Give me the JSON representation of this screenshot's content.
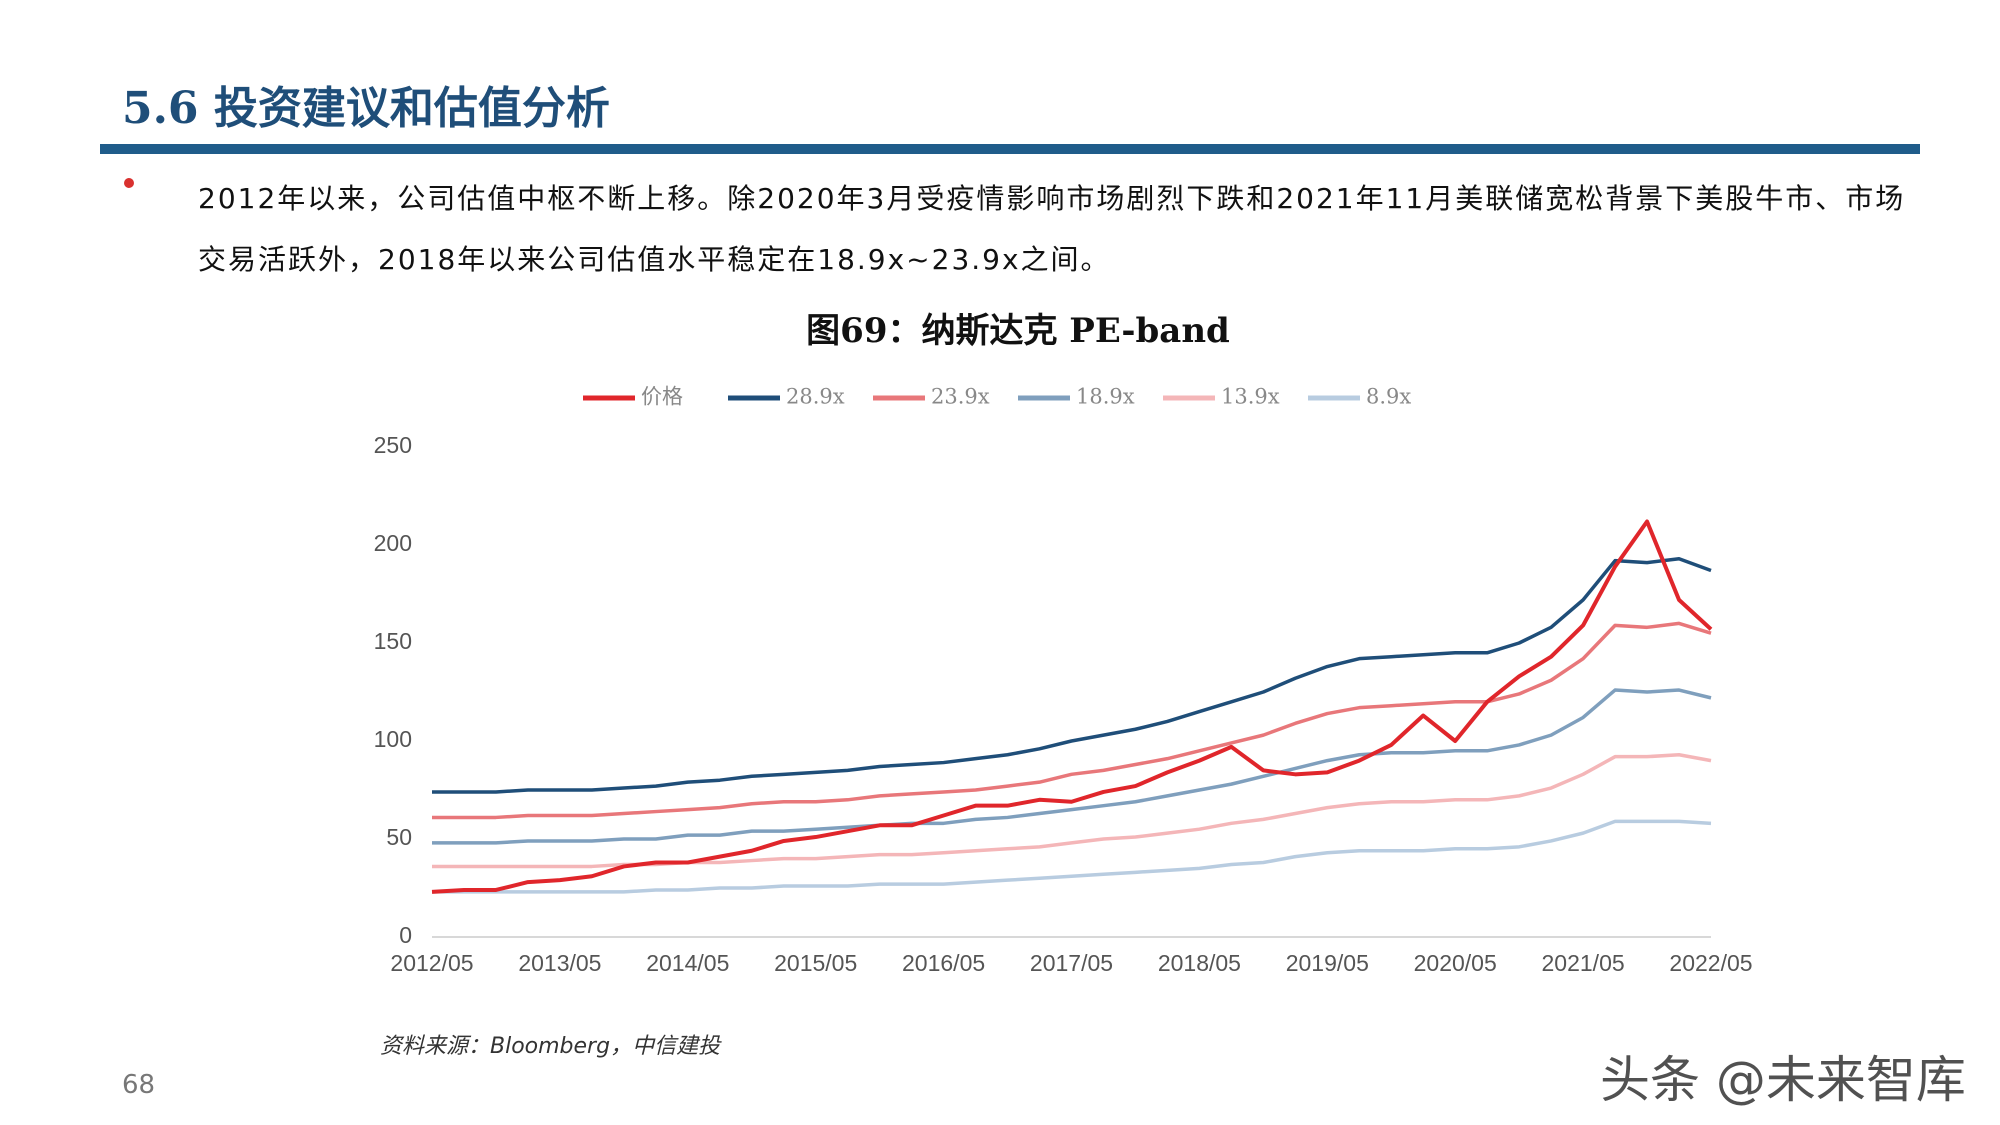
{
  "header": {
    "title": "5.6 投资建议和估值分析"
  },
  "bullet": "2012年以来，公司估值中枢不断上移。除2020年3月受疫情影响市场剧烈下跌和2021年11月美联储宽松背景下美股牛市、市场交易活跃外，2018年以来公司估值水平稳定在18.9x~23.9x之间。",
  "chart_data": {
    "type": "line",
    "title": "图69：纳斯达克 PE-band",
    "x": [
      "2012/05",
      "2012/08",
      "2012/11",
      "2013/02",
      "2013/05",
      "2013/08",
      "2013/11",
      "2014/02",
      "2014/05",
      "2014/08",
      "2014/11",
      "2015/02",
      "2015/05",
      "2015/08",
      "2015/11",
      "2016/02",
      "2016/05",
      "2016/08",
      "2016/11",
      "2017/02",
      "2017/05",
      "2017/08",
      "2017/11",
      "2018/02",
      "2018/05",
      "2018/08",
      "2018/11",
      "2019/02",
      "2019/05",
      "2019/08",
      "2019/11",
      "2020/02",
      "2020/05",
      "2020/08",
      "2020/11",
      "2021/02",
      "2021/05",
      "2021/08",
      "2021/11",
      "2022/02",
      "2022/05"
    ],
    "series": [
      {
        "name": "价格",
        "color": "#e0262b",
        "values": [
          23,
          24,
          24,
          28,
          29,
          31,
          36,
          38,
          38,
          41,
          44,
          49,
          51,
          54,
          57,
          57,
          62,
          67,
          67,
          70,
          69,
          74,
          77,
          84,
          90,
          97,
          85,
          83,
          84,
          90,
          98,
          113,
          100,
          120,
          133,
          143,
          159,
          189,
          212,
          172,
          157
        ]
      },
      {
        "name": "28.9x",
        "color": "#1f4e79",
        "values": [
          74,
          74,
          74,
          75,
          75,
          75,
          76,
          77,
          79,
          80,
          82,
          83,
          84,
          85,
          87,
          88,
          89,
          91,
          93,
          96,
          100,
          103,
          106,
          110,
          115,
          120,
          125,
          132,
          138,
          142,
          143,
          144,
          145,
          145,
          150,
          158,
          172,
          192,
          191,
          193,
          187
        ]
      },
      {
        "name": "23.9x",
        "color": "#e8777a",
        "values": [
          61,
          61,
          61,
          62,
          62,
          62,
          63,
          64,
          65,
          66,
          68,
          69,
          69,
          70,
          72,
          73,
          74,
          75,
          77,
          79,
          83,
          85,
          88,
          91,
          95,
          99,
          103,
          109,
          114,
          117,
          118,
          119,
          120,
          120,
          124,
          131,
          142,
          159,
          158,
          160,
          155
        ]
      },
      {
        "name": "18.9x",
        "color": "#7f9fbd",
        "values": [
          48,
          48,
          48,
          49,
          49,
          49,
          50,
          50,
          52,
          52,
          54,
          54,
          55,
          56,
          57,
          58,
          58,
          60,
          61,
          63,
          65,
          67,
          69,
          72,
          75,
          78,
          82,
          86,
          90,
          93,
          94,
          94,
          95,
          95,
          98,
          103,
          112,
          126,
          125,
          126,
          122
        ]
      },
      {
        "name": "13.9x",
        "color": "#f4b6b8",
        "values": [
          36,
          36,
          36,
          36,
          36,
          36,
          37,
          37,
          38,
          38,
          39,
          40,
          40,
          41,
          42,
          42,
          43,
          44,
          45,
          46,
          48,
          50,
          51,
          53,
          55,
          58,
          60,
          63,
          66,
          68,
          69,
          69,
          70,
          70,
          72,
          76,
          83,
          92,
          92,
          93,
          90
        ]
      },
      {
        "name": "8.9x",
        "color": "#b8cce0",
        "values": [
          23,
          23,
          23,
          23,
          23,
          23,
          23,
          24,
          24,
          25,
          25,
          26,
          26,
          26,
          27,
          27,
          27,
          28,
          29,
          30,
          31,
          32,
          33,
          34,
          35,
          37,
          38,
          41,
          43,
          44,
          44,
          44,
          45,
          45,
          46,
          49,
          53,
          59,
          59,
          59,
          58
        ]
      }
    ],
    "ylim": [
      0,
      250
    ],
    "yticks": [
      0,
      50,
      100,
      150,
      200,
      250
    ],
    "grid": false,
    "legend": "top"
  },
  "source": "资料来源：Bloomberg，中信建投",
  "page_number": "68",
  "watermark": "头条 @未来智库"
}
